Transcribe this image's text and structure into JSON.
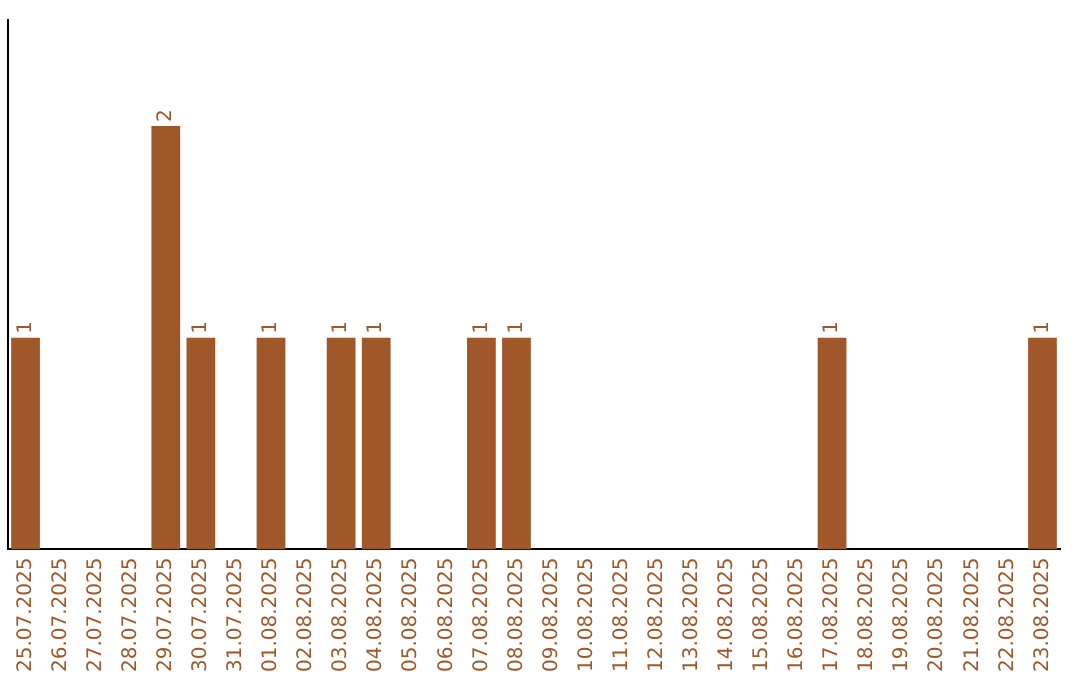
{
  "chart_data": {
    "type": "bar",
    "categories": [
      "25.07.2025",
      "26.07.2025",
      "27.07.2025",
      "28.07.2025",
      "29.07.2025",
      "30.07.2025",
      "31.07.2025",
      "01.08.2025",
      "02.08.2025",
      "03.08.2025",
      "04.08.2025",
      "05.08.2025",
      "06.08.2025",
      "07.08.2025",
      "08.08.2025",
      "09.08.2025",
      "10.08.2025",
      "11.08.2025",
      "12.08.2025",
      "13.08.2025",
      "14.08.2025",
      "15.08.2025",
      "16.08.2025",
      "17.08.2025",
      "18.08.2025",
      "19.08.2025",
      "20.08.2025",
      "21.08.2025",
      "22.08.2025",
      "23.08.2025"
    ],
    "values": [
      1,
      0,
      0,
      0,
      2,
      1,
      0,
      1,
      0,
      1,
      1,
      0,
      0,
      1,
      1,
      0,
      0,
      0,
      0,
      0,
      0,
      0,
      0,
      1,
      0,
      0,
      0,
      0,
      0,
      1
    ],
    "value_labels": [
      "1",
      null,
      null,
      null,
      "2",
      "1",
      null,
      "1",
      null,
      "1",
      "1",
      null,
      null,
      "1",
      "1",
      null,
      null,
      null,
      null,
      null,
      null,
      null,
      null,
      "1",
      null,
      null,
      null,
      null,
      null,
      "1"
    ],
    "color": "#a0582a",
    "tick_labels": "x",
    "grid": false,
    "legend": false
  }
}
